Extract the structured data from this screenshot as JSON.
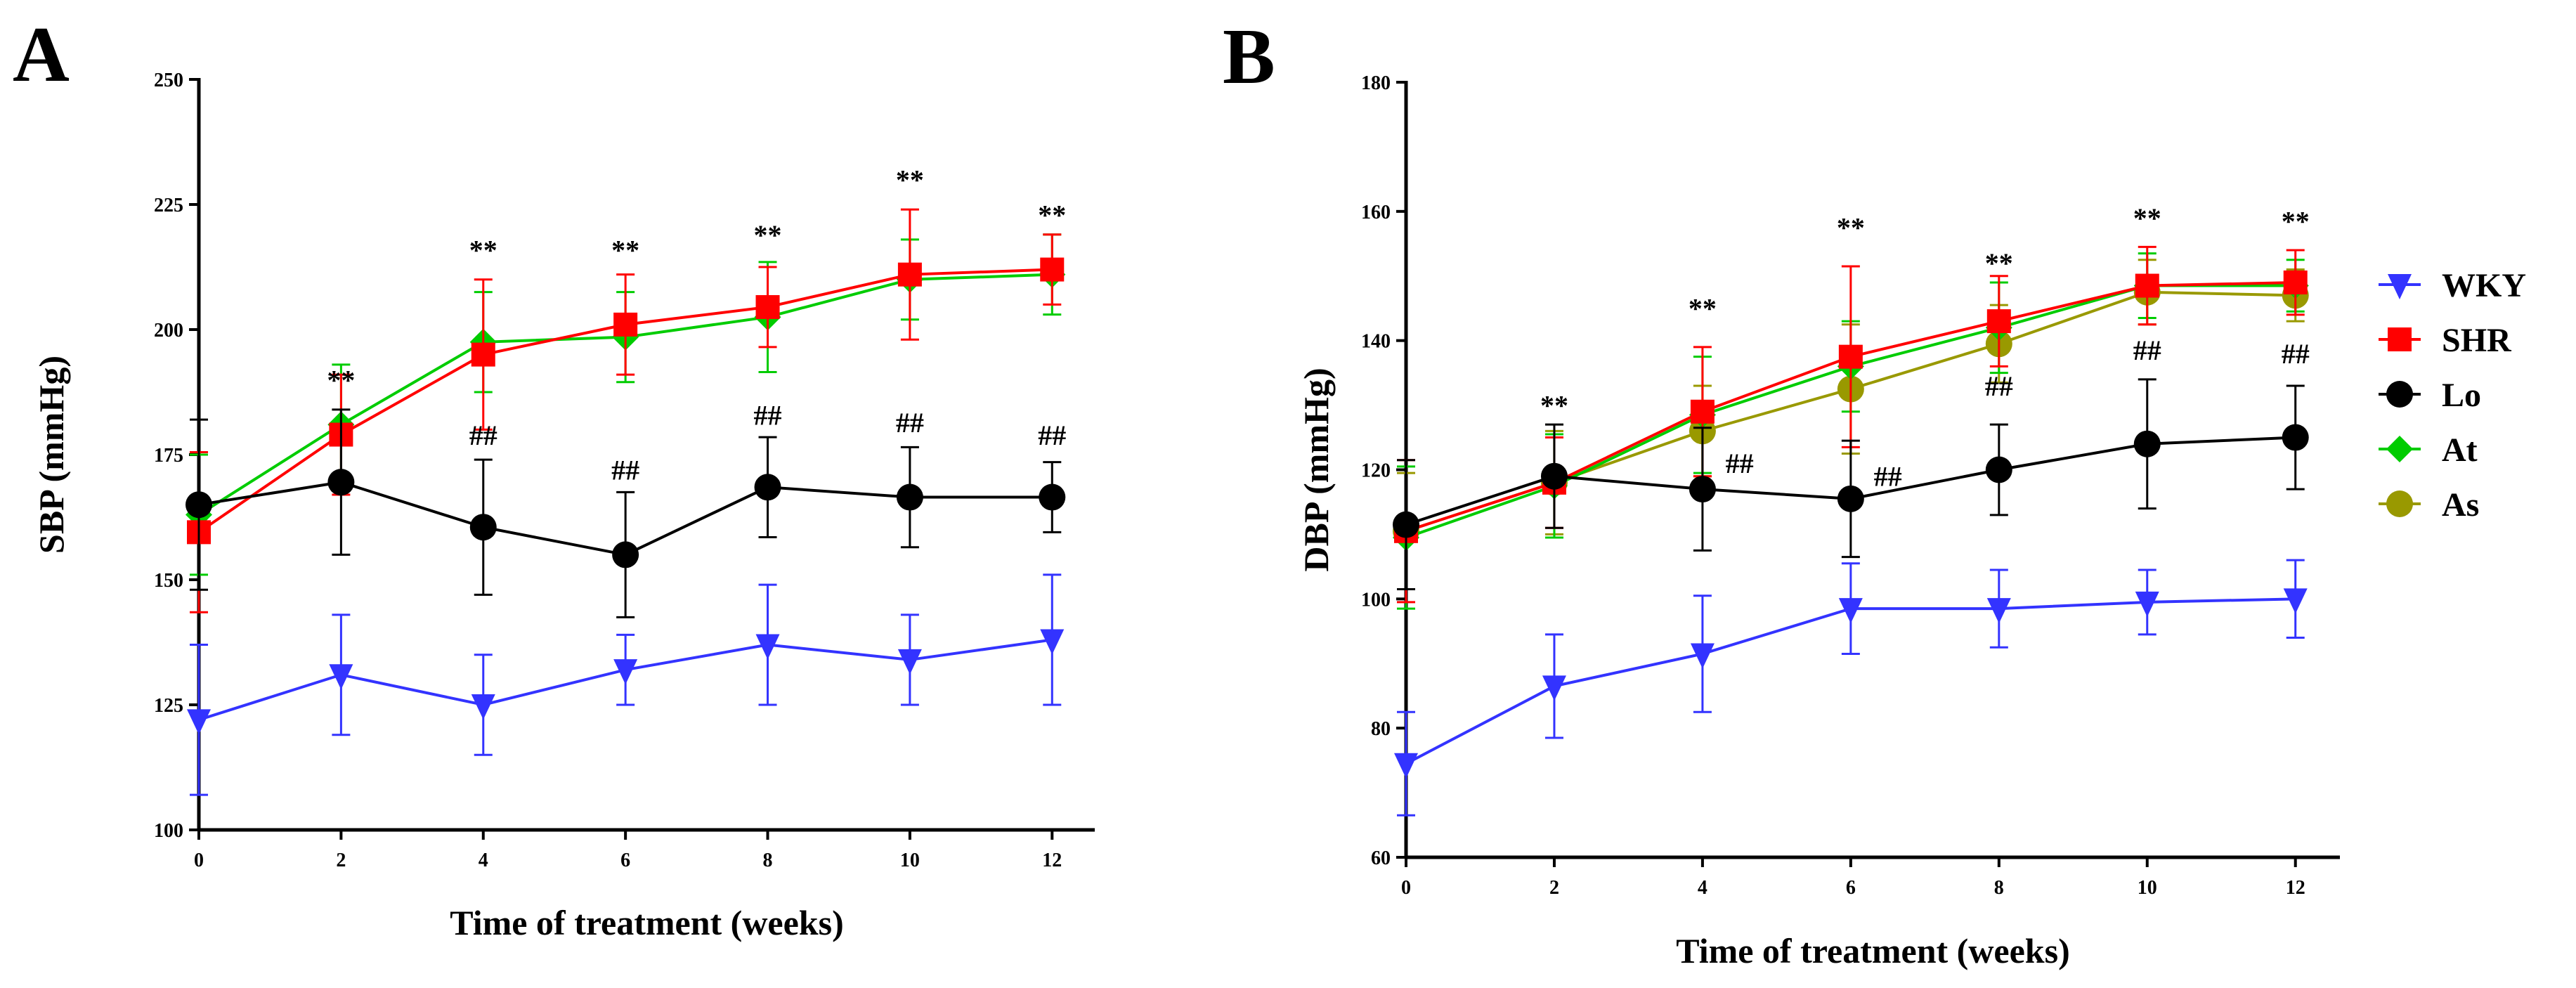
{
  "series_styles": [
    {
      "name": "WKY",
      "color": "#3333ff",
      "marker": "triangle-down"
    },
    {
      "name": "SHR",
      "color": "#ff0000",
      "marker": "square"
    },
    {
      "name": "Lo",
      "color": "#000000",
      "marker": "circle"
    },
    {
      "name": "At",
      "color": "#00cc00",
      "marker": "diamond"
    },
    {
      "name": "As",
      "color": "#999900",
      "marker": "circle"
    }
  ],
  "legend": {
    "position": "right",
    "items": [
      "WKY",
      "SHR",
      "Lo",
      "At",
      "As"
    ]
  },
  "chart_data": [
    {
      "panel": "A",
      "type": "line",
      "xlabel": "Time of treatment (weeks)",
      "ylabel": "SBP (mmHg)",
      "x": [
        0,
        2,
        4,
        6,
        8,
        10,
        12
      ],
      "xlim": [
        0,
        12.6
      ],
      "ylim": [
        100,
        250
      ],
      "xticks": [
        "0",
        "2",
        "4",
        "6",
        "8",
        "10",
        "12"
      ],
      "yticks": [
        "100",
        "125",
        "150",
        "175",
        "200",
        "225",
        "250"
      ],
      "series": [
        {
          "name": "WKY",
          "values": [
            122,
            131,
            125,
            132,
            137,
            134,
            138
          ],
          "errors": [
            15,
            12,
            10,
            7,
            12,
            9,
            13
          ]
        },
        {
          "name": "At",
          "values": [
            163,
            181,
            197.5,
            198.5,
            202.5,
            210,
            211
          ],
          "errors": [
            12,
            12,
            10,
            9,
            11,
            8,
            8
          ]
        },
        {
          "name": "SHR",
          "values": [
            159.5,
            179,
            195,
            201,
            204.5,
            211,
            212
          ],
          "errors": [
            16,
            12,
            15,
            10,
            8,
            13,
            7
          ]
        },
        {
          "name": "Lo",
          "values": [
            165,
            169.5,
            160.5,
            155,
            168.5,
            166.5,
            166.5
          ],
          "errors": [
            17,
            14.5,
            13.5,
            12.5,
            10,
            10,
            7
          ]
        }
      ],
      "annotations": [
        {
          "text": "**",
          "x": 2,
          "y": 188
        },
        {
          "text": "**",
          "x": 4,
          "y": 214
        },
        {
          "text": "**",
          "x": 6,
          "y": 214
        },
        {
          "text": "**",
          "x": 8,
          "y": 217
        },
        {
          "text": "**",
          "x": 10,
          "y": 228
        },
        {
          "text": "**",
          "x": 12,
          "y": 221
        },
        {
          "text": "##",
          "x": 4,
          "y": 177
        },
        {
          "text": "##",
          "x": 6,
          "y": 170
        },
        {
          "text": "##",
          "x": 8,
          "y": 181
        },
        {
          "text": "##",
          "x": 10,
          "y": 179.5
        },
        {
          "text": "##",
          "x": 12,
          "y": 177
        }
      ]
    },
    {
      "panel": "B",
      "type": "line",
      "xlabel": "Time of treatment (weeks)",
      "ylabel": "DBP (mmHg)",
      "x": [
        0,
        2,
        4,
        6,
        8,
        10,
        12
      ],
      "xlim": [
        0,
        12.6
      ],
      "ylim": [
        60,
        180
      ],
      "xticks": [
        "0",
        "2",
        "4",
        "6",
        "8",
        "10",
        "12"
      ],
      "yticks": [
        "60",
        "80",
        "100",
        "120",
        "140",
        "160",
        "180"
      ],
      "series": [
        {
          "name": "WKY",
          "values": [
            74.5,
            86.5,
            91.5,
            98.5,
            98.5,
            99.5,
            100
          ],
          "errors": [
            8,
            8,
            9,
            7,
            6,
            5,
            6
          ]
        },
        {
          "name": "As",
          "values": [
            110.5,
            118,
            126,
            132.5,
            139.5,
            147.5,
            147
          ],
          "errors": [
            9,
            8,
            7,
            10,
            6,
            5,
            4
          ]
        },
        {
          "name": "At",
          "values": [
            109.5,
            117.5,
            128.5,
            136,
            142,
            148.5,
            148.5
          ],
          "errors": [
            11,
            8,
            9,
            7,
            7,
            5,
            4
          ]
        },
        {
          "name": "SHR",
          "values": [
            110.5,
            118,
            129,
            137.5,
            143,
            148.5,
            149
          ],
          "errors": [
            11,
            7,
            10,
            14,
            7,
            6,
            5
          ]
        },
        {
          "name": "Lo",
          "values": [
            111.5,
            119,
            117,
            115.5,
            120,
            124,
            125
          ],
          "errors": [
            10,
            8,
            9.5,
            9,
            7,
            10,
            8
          ]
        }
      ],
      "annotations": [
        {
          "text": "**",
          "x": 2,
          "y": 128.5
        },
        {
          "text": "**",
          "x": 4,
          "y": 143.5
        },
        {
          "text": "**",
          "x": 6,
          "y": 156
        },
        {
          "text": "**",
          "x": 8,
          "y": 150.5
        },
        {
          "text": "**",
          "x": 10,
          "y": 157.5
        },
        {
          "text": "**",
          "x": 12,
          "y": 157
        },
        {
          "text": "##",
          "x": 4.5,
          "y": 119.5
        },
        {
          "text": "##",
          "x": 6.5,
          "y": 117.5
        },
        {
          "text": "##",
          "x": 8,
          "y": 131.5
        },
        {
          "text": "##",
          "x": 10,
          "y": 137
        },
        {
          "text": "##",
          "x": 12,
          "y": 136.5
        }
      ]
    }
  ]
}
